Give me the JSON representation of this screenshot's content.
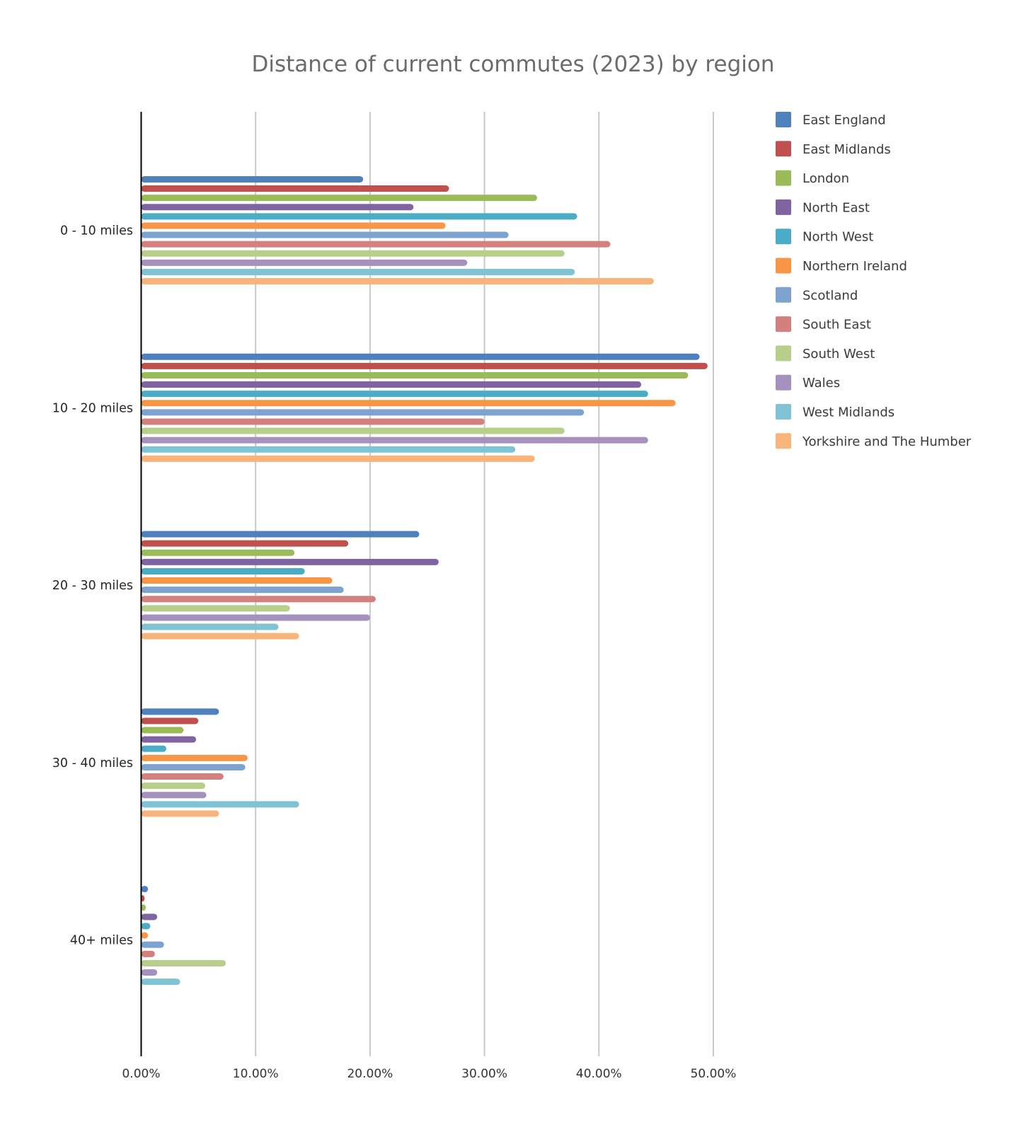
{
  "chart_data": {
    "type": "bar",
    "orientation": "horizontal",
    "title": "Distance of current commutes (2023) by region",
    "xlabel": "",
    "ylabel": "",
    "xlim": [
      0,
      50
    ],
    "x_ticks": [
      0,
      10,
      20,
      30,
      40,
      50
    ],
    "x_tick_labels": [
      "0.00%",
      "10.00%",
      "20.00%",
      "30.00%",
      "40.00%",
      "50.00%"
    ],
    "value_unit": "percent",
    "grid": "vertical",
    "legend_position": "right",
    "categories": [
      "0 - 10 miles",
      "10 - 20 miles",
      "20 - 30 miles",
      "30 - 40 miles",
      "40+ miles"
    ],
    "series": [
      {
        "name": "East England",
        "color": "#4F81BD",
        "values": [
          19.4,
          48.8,
          24.3,
          6.8,
          0.6
        ]
      },
      {
        "name": "East Midlands",
        "color": "#C0504D",
        "values": [
          26.9,
          49.5,
          18.1,
          5.0,
          0.3
        ]
      },
      {
        "name": "London",
        "color": "#9BBB59",
        "values": [
          34.6,
          47.8,
          13.4,
          3.7,
          0.4
        ]
      },
      {
        "name": "North East",
        "color": "#8064A2",
        "values": [
          23.8,
          43.7,
          26.0,
          4.8,
          1.4
        ]
      },
      {
        "name": "North West",
        "color": "#4BACC6",
        "values": [
          38.1,
          44.3,
          14.3,
          2.2,
          0.8
        ]
      },
      {
        "name": "Northern Ireland",
        "color": "#F79646",
        "values": [
          26.6,
          46.7,
          16.7,
          9.3,
          0.6
        ]
      },
      {
        "name": "Scotland",
        "color": "#7FA3CF",
        "values": [
          32.1,
          38.7,
          17.7,
          9.1,
          2.0
        ]
      },
      {
        "name": "South East",
        "color": "#D3817E",
        "values": [
          41.0,
          30.0,
          20.5,
          7.2,
          1.2
        ]
      },
      {
        "name": "South West",
        "color": "#B8CF8B",
        "values": [
          37.0,
          37.0,
          13.0,
          5.6,
          7.4
        ]
      },
      {
        "name": "Wales",
        "color": "#A691BE",
        "values": [
          28.5,
          44.3,
          20.0,
          5.7,
          1.4
        ]
      },
      {
        "name": "West Midlands",
        "color": "#7FC3D5",
        "values": [
          37.9,
          32.7,
          12.0,
          13.8,
          3.4
        ]
      },
      {
        "name": "Yorkshire and The Humber",
        "color": "#F9B47C",
        "values": [
          44.8,
          34.4,
          13.8,
          6.8,
          0.0
        ]
      }
    ]
  }
}
